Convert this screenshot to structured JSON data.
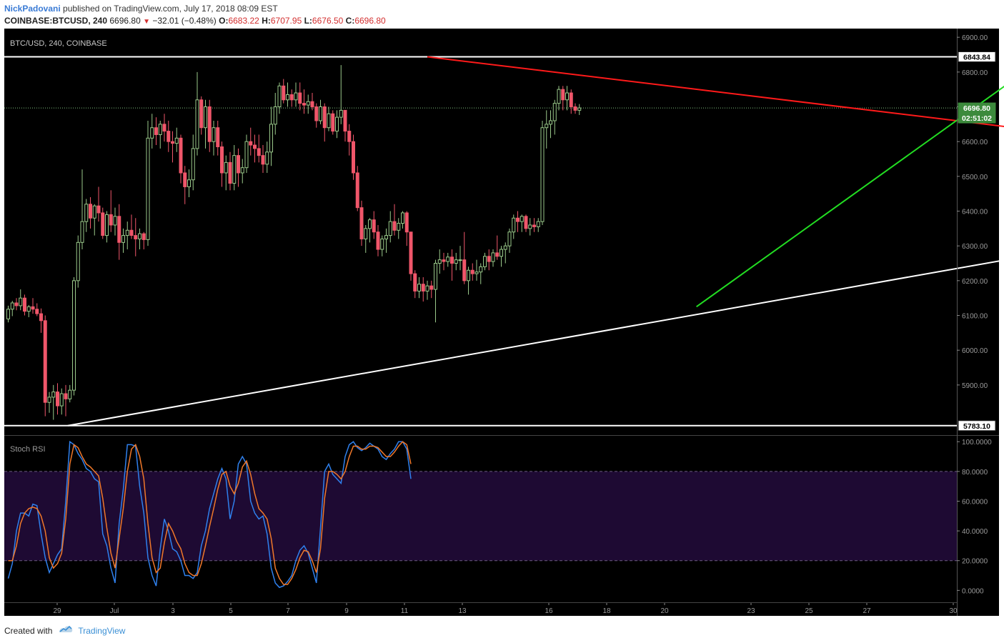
{
  "header": {
    "author": "NickPadovani",
    "published_text": "published on TradingView.com, July 17, 2018 08:09 EST",
    "symbol": "COINBASE:BTCUSD, 240",
    "last": "6696.80",
    "change": "−32.01 (−0.48%)",
    "open_label": "O:",
    "open": "6683.22",
    "high_label": "H:",
    "high": "6707.95",
    "low_label": "L:",
    "low": "6676.50",
    "close_label": "C:",
    "close": "6696.80"
  },
  "footer": {
    "created_with": "Created with",
    "brand": "TradingView"
  },
  "colors": {
    "background": "#000000",
    "up_candle": "#9ac98a",
    "down_candle": "#f0566a",
    "resistance_line": "#ff1a1a",
    "arrow": "#22dd22",
    "support_line": "#ffffff",
    "stoch_k": "#2f80ed",
    "stoch_d": "#f0782a",
    "stoch_band": "#1e0a33"
  },
  "chart_data": [
    {
      "type": "candlestick",
      "title": "BTC/USD, 240, COINBASE",
      "ylim": [
        5760,
        6925
      ],
      "y_ticks": [
        5900,
        6000,
        6100,
        6200,
        6300,
        6400,
        6500,
        6600,
        6700,
        6800,
        6900
      ],
      "y_tick_labels": [
        "5900.00",
        "6000.00",
        "6100.00",
        "6200.00",
        "6300.00",
        "6400.00",
        "6500.00",
        "6600.00",
        "6700.00",
        "6800.00",
        "6900.00"
      ],
      "x_tick_labels": [
        "29",
        "Jul",
        "3",
        "5",
        "7",
        "9",
        "11",
        "13",
        "16",
        "18",
        "20",
        "23",
        "25",
        "27",
        "30"
      ],
      "price_tags": [
        {
          "label": "6843.84",
          "value": 6843.84,
          "style": "white"
        },
        {
          "label": "6696.80",
          "value": 6696.8,
          "style": "green"
        },
        {
          "label": "02:51:02",
          "value": 6668,
          "style": "green"
        },
        {
          "label": "5783.10",
          "value": 5783.1,
          "style": "white"
        }
      ],
      "horizontal_lines": [
        {
          "value": 6843.84,
          "color": "#ffffff"
        },
        {
          "value": 5783.1,
          "color": "#ffffff"
        }
      ],
      "last_price_line": 6696.8,
      "trend_lines": [
        {
          "name": "resistance",
          "from": [
            102,
            6843.84
          ],
          "to": [
            329,
            6520
          ]
        },
        {
          "name": "support",
          "from": [
            14.5,
            5783.1
          ],
          "to": [
            329,
            6440
          ]
        },
        {
          "name": "arrow",
          "from": [
            167.5,
            6125
          ],
          "to": [
            252,
            6840
          ],
          "arrow": true
        }
      ],
      "candles": [
        [
          6090,
          6128,
          6080,
          6118
        ],
        [
          6118,
          6142,
          6098,
          6136
        ],
        [
          6136,
          6150,
          6115,
          6128
        ],
        [
          6128,
          6175,
          6115,
          6150
        ],
        [
          6150,
          6160,
          6100,
          6112
        ],
        [
          6112,
          6130,
          6095,
          6125
        ],
        [
          6125,
          6150,
          6105,
          6118
        ],
        [
          6118,
          6135,
          6098,
          6105
        ],
        [
          6105,
          6120,
          6050,
          6085
        ],
        [
          6085,
          6100,
          5810,
          5850
        ],
        [
          5850,
          5880,
          5820,
          5865
        ],
        [
          5865,
          5900,
          5800,
          5880
        ],
        [
          5880,
          5905,
          5815,
          5840
        ],
        [
          5840,
          5890,
          5815,
          5875
        ],
        [
          5875,
          5900,
          5810,
          5860
        ],
        [
          5860,
          5900,
          5850,
          5885
        ],
        [
          5885,
          6210,
          5870,
          6200
        ],
        [
          6200,
          6330,
          6180,
          6310
        ],
        [
          6310,
          6520,
          6290,
          6370
        ],
        [
          6370,
          6435,
          6340,
          6420
        ],
        [
          6420,
          6440,
          6350,
          6380
        ],
        [
          6380,
          6420,
          6330,
          6415
        ],
        [
          6415,
          6470,
          6370,
          6395
        ],
        [
          6395,
          6410,
          6320,
          6330
        ],
        [
          6330,
          6400,
          6310,
          6390
        ],
        [
          6390,
          6460,
          6340,
          6360
        ],
        [
          6360,
          6410,
          6330,
          6385
        ],
        [
          6385,
          6420,
          6260,
          6310
        ],
        [
          6310,
          6350,
          6280,
          6330
        ],
        [
          6330,
          6370,
          6290,
          6345
        ],
        [
          6345,
          6390,
          6320,
          6330
        ],
        [
          6330,
          6380,
          6270,
          6320
        ],
        [
          6320,
          6350,
          6290,
          6335
        ],
        [
          6335,
          6340,
          6290,
          6318
        ],
        [
          6318,
          6660,
          6300,
          6610
        ],
        [
          6610,
          6680,
          6580,
          6640
        ],
        [
          6640,
          6670,
          6590,
          6620
        ],
        [
          6620,
          6660,
          6580,
          6650
        ],
        [
          6650,
          6680,
          6600,
          6630
        ],
        [
          6630,
          6660,
          6570,
          6600
        ],
        [
          6600,
          6630,
          6540,
          6595
        ],
        [
          6595,
          6640,
          6570,
          6610
        ],
        [
          6610,
          6620,
          6480,
          6510
        ],
        [
          6510,
          6530,
          6420,
          6470
        ],
        [
          6470,
          6520,
          6440,
          6490
        ],
        [
          6490,
          6620,
          6460,
          6580
        ],
        [
          6580,
          6800,
          6560,
          6720
        ],
        [
          6720,
          6730,
          6620,
          6640
        ],
        [
          6640,
          6720,
          6580,
          6700
        ],
        [
          6700,
          6720,
          6570,
          6600
        ],
        [
          6600,
          6660,
          6560,
          6640
        ],
        [
          6640,
          6660,
          6560,
          6585
        ],
        [
          6585,
          6600,
          6470,
          6510
        ],
        [
          6510,
          6560,
          6460,
          6540
        ],
        [
          6540,
          6570,
          6460,
          6480
        ],
        [
          6480,
          6590,
          6460,
          6560
        ],
        [
          6560,
          6580,
          6470,
          6510
        ],
        [
          6510,
          6550,
          6480,
          6525
        ],
        [
          6525,
          6620,
          6510,
          6600
        ],
        [
          6600,
          6640,
          6560,
          6590
        ],
        [
          6590,
          6620,
          6540,
          6580
        ],
        [
          6580,
          6620,
          6540,
          6560
        ],
        [
          6560,
          6590,
          6510,
          6535
        ],
        [
          6535,
          6600,
          6510,
          6570
        ],
        [
          6570,
          6700,
          6530,
          6650
        ],
        [
          6650,
          6740,
          6620,
          6700
        ],
        [
          6700,
          6770,
          6680,
          6760
        ],
        [
          6760,
          6780,
          6710,
          6720
        ],
        [
          6720,
          6770,
          6700,
          6735
        ],
        [
          6735,
          6750,
          6700,
          6720
        ],
        [
          6720,
          6770,
          6700,
          6740
        ],
        [
          6740,
          6770,
          6690,
          6710
        ],
        [
          6710,
          6750,
          6680,
          6705
        ],
        [
          6705,
          6735,
          6680,
          6715
        ],
        [
          6715,
          6740,
          6690,
          6700
        ],
        [
          6700,
          6710,
          6640,
          6660
        ],
        [
          6660,
          6720,
          6650,
          6700
        ],
        [
          6700,
          6710,
          6600,
          6640
        ],
        [
          6640,
          6700,
          6630,
          6680
        ],
        [
          6680,
          6690,
          6620,
          6630
        ],
        [
          6630,
          6690,
          6610,
          6670
        ],
        [
          6670,
          6820,
          6650,
          6690
        ],
        [
          6690,
          6690,
          6600,
          6630
        ],
        [
          6630,
          6650,
          6560,
          6600
        ],
        [
          6600,
          6620,
          6490,
          6510
        ],
        [
          6510,
          6530,
          6400,
          6410
        ],
        [
          6410,
          6430,
          6300,
          6320
        ],
        [
          6320,
          6360,
          6280,
          6350
        ],
        [
          6350,
          6380,
          6310,
          6375
        ],
        [
          6375,
          6400,
          6320,
          6340
        ],
        [
          6340,
          6360,
          6270,
          6290
        ],
        [
          6290,
          6330,
          6270,
          6320
        ],
        [
          6320,
          6350,
          6280,
          6330
        ],
        [
          6330,
          6400,
          6310,
          6370
        ],
        [
          6370,
          6420,
          6330,
          6345
        ],
        [
          6345,
          6380,
          6320,
          6365
        ],
        [
          6365,
          6400,
          6350,
          6395
        ],
        [
          6395,
          6400,
          6300,
          6340
        ],
        [
          6340,
          6340,
          6200,
          6220
        ],
        [
          6220,
          6230,
          6150,
          6170
        ],
        [
          6170,
          6210,
          6150,
          6190
        ],
        [
          6190,
          6210,
          6140,
          6170
        ],
        [
          6170,
          6200,
          6145,
          6185
        ],
        [
          6185,
          6200,
          6150,
          6175
        ],
        [
          6175,
          6260,
          6080,
          6250
        ],
        [
          6250,
          6290,
          6220,
          6260
        ],
        [
          6260,
          6280,
          6230,
          6255
        ],
        [
          6255,
          6280,
          6240,
          6268
        ],
        [
          6268,
          6290,
          6200,
          6250
        ],
        [
          6250,
          6280,
          6230,
          6260
        ],
        [
          6260,
          6300,
          6230,
          6260
        ],
        [
          6260,
          6340,
          6190,
          6200
        ],
        [
          6200,
          6240,
          6160,
          6230
        ],
        [
          6230,
          6250,
          6200,
          6220
        ],
        [
          6220,
          6260,
          6200,
          6225
        ],
        [
          6225,
          6250,
          6190,
          6240
        ],
        [
          6240,
          6280,
          6230,
          6270
        ],
        [
          6270,
          6290,
          6230,
          6255
        ],
        [
          6255,
          6290,
          6240,
          6280
        ],
        [
          6280,
          6330,
          6260,
          6270
        ],
        [
          6270,
          6300,
          6240,
          6290
        ],
        [
          6290,
          6310,
          6250,
          6300
        ],
        [
          6300,
          6350,
          6280,
          6340
        ],
        [
          6340,
          6390,
          6320,
          6380
        ],
        [
          6380,
          6400,
          6340,
          6370
        ],
        [
          6370,
          6390,
          6340,
          6385
        ],
        [
          6385,
          6390,
          6340,
          6350
        ],
        [
          6350,
          6380,
          6330,
          6360
        ],
        [
          6360,
          6380,
          6340,
          6355
        ],
        [
          6355,
          6380,
          6340,
          6370
        ],
        [
          6370,
          6660,
          6360,
          6640
        ],
        [
          6640,
          6690,
          6580,
          6650
        ],
        [
          6650,
          6690,
          6610,
          6660
        ],
        [
          6660,
          6720,
          6620,
          6710
        ],
        [
          6710,
          6760,
          6690,
          6750
        ],
        [
          6750,
          6760,
          6690,
          6720
        ],
        [
          6720,
          6760,
          6690,
          6740
        ],
        [
          6740,
          6750,
          6680,
          6700
        ],
        [
          6700,
          6710,
          6680,
          6690
        ],
        [
          6690,
          6707.95,
          6676.5,
          6696.8
        ]
      ]
    },
    {
      "type": "line",
      "title": "Stoch RSI",
      "ylim": [
        -8,
        103
      ],
      "y_ticks": [
        0,
        20,
        40,
        60,
        80,
        100
      ],
      "y_tick_labels": [
        "0.0000",
        "20.0000",
        "40.0000",
        "60.0000",
        "80.0000",
        "100.0000"
      ],
      "bands": [
        20,
        80
      ],
      "series": [
        {
          "values": [
            8,
            18,
            40,
            52,
            52,
            50,
            58,
            57,
            38,
            22,
            12,
            18,
            24,
            28,
            60,
            100,
            98,
            92,
            88,
            82,
            80,
            75,
            73,
            38,
            30,
            15,
            5,
            45,
            68,
            98,
            98,
            97,
            70,
            52,
            22,
            10,
            3,
            28,
            48,
            40,
            28,
            26,
            20,
            10,
            10,
            8,
            12,
            30,
            40,
            55,
            65,
            75,
            82,
            75,
            48,
            60,
            85,
            90,
            85,
            60,
            52,
            48,
            50,
            38,
            15,
            5,
            2,
            3,
            6,
            10,
            20,
            27,
            30,
            25,
            15,
            5,
            42,
            80,
            85,
            78,
            75,
            72,
            90,
            98,
            100,
            96,
            94,
            96,
            99,
            97,
            95,
            90,
            88,
            92,
            95,
            100,
            100,
            95,
            75
          ]
        },
        {
          "values": [
            20,
            20,
            30,
            45,
            52,
            55,
            56,
            55,
            50,
            40,
            22,
            15,
            18,
            25,
            48,
            85,
            98,
            96,
            90,
            85,
            83,
            80,
            77,
            62,
            42,
            25,
            15,
            35,
            55,
            80,
            95,
            98,
            90,
            75,
            45,
            22,
            12,
            15,
            32,
            45,
            40,
            33,
            28,
            18,
            12,
            10,
            10,
            18,
            30,
            43,
            55,
            68,
            78,
            80,
            70,
            65,
            72,
            83,
            87,
            78,
            65,
            55,
            52,
            48,
            35,
            15,
            8,
            4,
            4,
            8,
            14,
            22,
            27,
            26,
            20,
            12,
            28,
            62,
            80,
            80,
            78,
            75,
            80,
            90,
            97,
            97,
            95,
            95,
            97,
            97,
            96,
            93,
            90,
            90,
            93,
            97,
            100,
            98,
            85
          ]
        }
      ]
    }
  ]
}
